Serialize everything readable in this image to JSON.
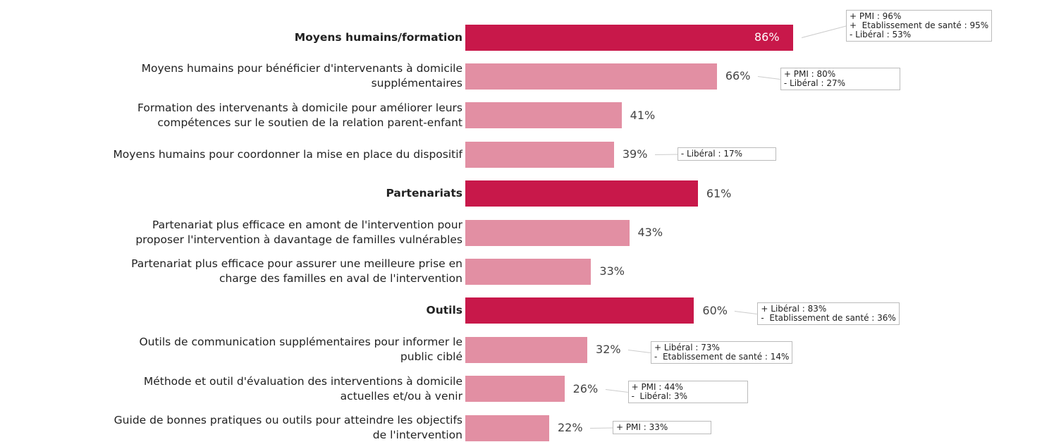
{
  "chart_data": {
    "type": "bar",
    "orientation": "horizontal",
    "categories": [
      "Moyens humains/formation",
      "Moyens humains pour bénéficier d'intervenants à domicile\nsupplémentaires",
      "Formation des intervenants à domicile pour améliorer leurs\ncompétences sur le soutien de la relation parent-enfant",
      "Moyens humains pour coordonner la mise en place du dispositif",
      "Partenariats",
      "Partenariat plus efficace en amont de l'intervention pour\nproposer l'intervention à davantage de familles vulnérables",
      "Partenariat plus efficace pour assurer une meilleure prise en\ncharge des familles en aval de l'intervention",
      "Outils",
      "Outils de communication supplémentaires pour informer le\npublic ciblé",
      "Méthode et outil d'évaluation des interventions à domicile\nactuelles et/ou à venir",
      "Guide de bonnes pratiques ou outils pour atteindre les objectifs\nde l'intervention"
    ],
    "values": [
      86,
      66,
      41,
      39,
      61,
      43,
      33,
      60,
      32,
      26,
      22
    ],
    "value_labels": [
      "86%",
      "66%",
      "41%",
      "39%",
      "61%",
      "43%",
      "33%",
      "60%",
      "32%",
      "26%",
      "22%"
    ],
    "colors": [
      "#c8184a",
      "#e28fa3",
      "#e28fa3",
      "#e28fa3",
      "#c8184a",
      "#e28fa3",
      "#e28fa3",
      "#c8184a",
      "#e28fa3",
      "#e28fa3",
      "#e28fa3"
    ],
    "annotations": [
      [
        "+ PMI : 96%",
        "+  Etablissement de santé : 95%",
        "- Libéral : 53%"
      ],
      [
        "+ PMI : 80%",
        "- Libéral : 27%"
      ],
      null,
      [
        "- Libéral : 17%"
      ],
      null,
      null,
      null,
      [
        "+ Libéral : 83%",
        "-  Etablissement de santé : 36%"
      ],
      [
        "+ Libéral : 73%",
        "-  Etablissement de santé : 14%"
      ],
      [
        "+ PMI : 44%",
        "-  Libéral: 3%"
      ],
      [
        "+ PMI : 33%"
      ]
    ]
  }
}
